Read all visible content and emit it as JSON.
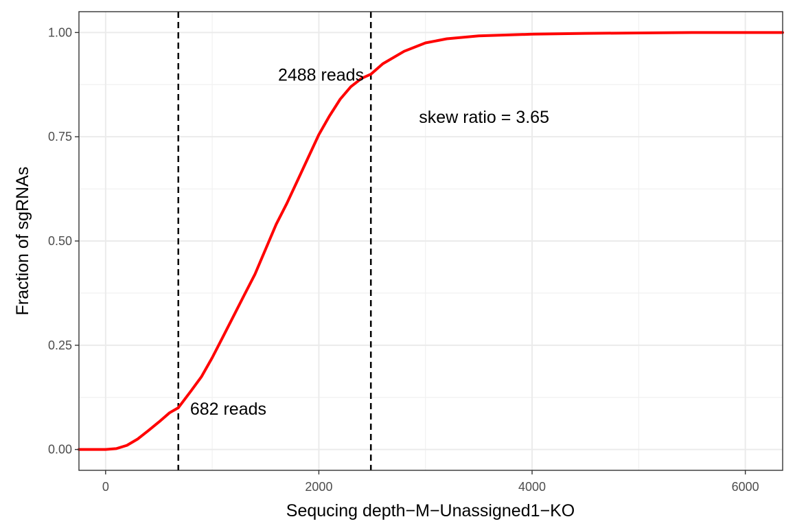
{
  "chart_data": {
    "type": "line",
    "xlabel": "Sequcing depth−M−Unassigned1−KO",
    "ylabel": "Fraction of sgRNAs",
    "xlim": [
      -250,
      6350
    ],
    "ylim": [
      -0.05,
      1.05
    ],
    "x_ticks": [
      0,
      2000,
      4000,
      6000
    ],
    "x_tick_labels": [
      "0",
      "2000",
      "4000",
      "6000"
    ],
    "y_ticks": [
      0,
      0.25,
      0.5,
      0.75,
      1.0
    ],
    "y_tick_labels": [
      "0.00",
      "0.25",
      "0.50",
      "0.75",
      "1.00"
    ],
    "grid": true,
    "series": [
      {
        "color": "#ff0000",
        "x": [
          -250,
          0,
          100,
          200,
          300,
          400,
          500,
          600,
          682,
          800,
          900,
          1000,
          1100,
          1200,
          1300,
          1400,
          1500,
          1600,
          1700,
          1800,
          1900,
          2000,
          2100,
          2200,
          2300,
          2400,
          2488,
          2600,
          2800,
          3000,
          3200,
          3500,
          4000,
          4500,
          5000,
          5500,
          6000,
          6350
        ],
        "y": [
          0,
          0,
          0.002,
          0.01,
          0.025,
          0.045,
          0.066,
          0.088,
          0.1,
          0.14,
          0.175,
          0.22,
          0.27,
          0.32,
          0.37,
          0.42,
          0.48,
          0.54,
          0.59,
          0.645,
          0.7,
          0.755,
          0.8,
          0.84,
          0.87,
          0.89,
          0.9,
          0.925,
          0.955,
          0.975,
          0.985,
          0.992,
          0.996,
          0.998,
          0.999,
          1.0,
          1.0,
          1.0
        ]
      }
    ],
    "vlines": [
      682,
      2488
    ],
    "annotations": [
      {
        "text": "682 reads",
        "x": 1150,
        "y": 0.098
      },
      {
        "text": "2488 reads",
        "x": 2020,
        "y": 0.899
      },
      {
        "text": "skew ratio = 3.65",
        "x": 3550,
        "y": 0.798
      }
    ]
  }
}
